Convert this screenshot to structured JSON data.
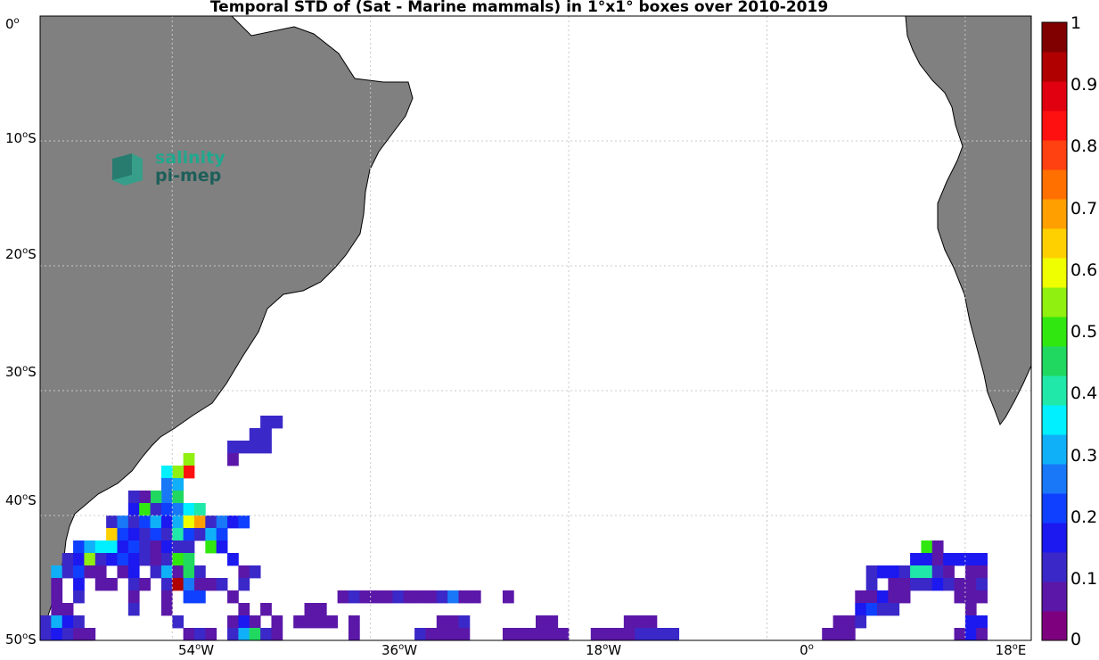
{
  "title": "Temporal STD of (Sat - Marine mammals) in 1°x1° boxes over 2010-2019",
  "map": {
    "lon_range": [
      -66,
      24
    ],
    "lat_range": [
      -50,
      0
    ],
    "land_color": "#808080",
    "ocean_color": "#ffffff",
    "grid": true,
    "y_ticks": [
      {
        "deg": "0",
        "hemi": ""
      },
      {
        "deg": "10",
        "hemi": "S"
      },
      {
        "deg": "20",
        "hemi": "S"
      },
      {
        "deg": "30",
        "hemi": "S"
      },
      {
        "deg": "40",
        "hemi": "S"
      },
      {
        "deg": "50",
        "hemi": "S"
      }
    ],
    "x_ticks": [
      {
        "deg": "54",
        "hemi": "W"
      },
      {
        "deg": "36",
        "hemi": "W"
      },
      {
        "deg": "18",
        "hemi": "W"
      },
      {
        "deg": "0",
        "hemi": ""
      },
      {
        "deg": "18",
        "hemi": "E"
      }
    ]
  },
  "colorbar": {
    "ticks": [
      "1",
      "0.9",
      "0.8",
      "0.7",
      "0.6",
      "0.5",
      "0.4",
      "0.3",
      "0.2",
      "0.1",
      "0"
    ],
    "colors": [
      "#7f007f",
      "#5b17a8",
      "#3b28c8",
      "#1c18f0",
      "#1040ff",
      "#1878f8",
      "#10b0f8",
      "#00f0ff",
      "#20e8a8",
      "#20d860",
      "#30e810",
      "#90f010",
      "#f0ff00",
      "#ffd000",
      "#ffa000",
      "#ff7000",
      "#ff4010",
      "#ff1010",
      "#e00010",
      "#b00000",
      "#800000"
    ]
  },
  "logo": {
    "line1": "salinity",
    "line2": "pi-mep"
  },
  "chart_data": {
    "type": "heatmap",
    "title": "Temporal STD of (Sat - Marine mammals) in 1°x1° boxes over 2010-2019",
    "value_range": [
      0,
      1
    ],
    "cell_size_deg": 1,
    "cells": [
      [
        -45.5,
        -32.5,
        0.1
      ],
      [
        -44.5,
        -32.5,
        0.1
      ],
      [
        -46.5,
        -33.5,
        0.1
      ],
      [
        -45.5,
        -33.5,
        0.1
      ],
      [
        -48.5,
        -34.5,
        0.1
      ],
      [
        -47.5,
        -34.5,
        0.1
      ],
      [
        -46.5,
        -34.5,
        0.1
      ],
      [
        -45.5,
        -34.5,
        0.1
      ],
      [
        -52.5,
        -35.5,
        0.55
      ],
      [
        -48.5,
        -35.5,
        0.05
      ],
      [
        -52.5,
        -36.5,
        0.85
      ],
      [
        -53.5,
        -36.5,
        0.55
      ],
      [
        -54.5,
        -36.5,
        0.35
      ],
      [
        -54.5,
        -37.5,
        0.25
      ],
      [
        -53.5,
        -37.5,
        0.3
      ],
      [
        -54.5,
        -38.5,
        0.25
      ],
      [
        -53.5,
        -38.5,
        0.45
      ],
      [
        -55.5,
        -38.5,
        0.45
      ],
      [
        -56.5,
        -38.5,
        0.05
      ],
      [
        -57.5,
        -38.5,
        0.1
      ],
      [
        -57.5,
        -39.5,
        0.15
      ],
      [
        -56.5,
        -39.5,
        0.5
      ],
      [
        -55.5,
        -39.5,
        0.1
      ],
      [
        -54.5,
        -39.5,
        0.2
      ],
      [
        -53.5,
        -39.5,
        0.25
      ],
      [
        -52.5,
        -39.5,
        0.35
      ],
      [
        -51.5,
        -39.5,
        0.4
      ],
      [
        -59.5,
        -40.5,
        0.1
      ],
      [
        -58.5,
        -40.5,
        0.25
      ],
      [
        -57.5,
        -40.5,
        0.1
      ],
      [
        -56.5,
        -40.5,
        0.2
      ],
      [
        -55.5,
        -40.5,
        0.3
      ],
      [
        -54.5,
        -40.5,
        0.15
      ],
      [
        -53.5,
        -40.5,
        0.3
      ],
      [
        -52.5,
        -40.5,
        0.6
      ],
      [
        -51.5,
        -40.5,
        0.7
      ],
      [
        -50.5,
        -40.5,
        0.1
      ],
      [
        -49.5,
        -40.5,
        0.25
      ],
      [
        -48.5,
        -40.5,
        0.15
      ],
      [
        -47.5,
        -40.5,
        0.2
      ],
      [
        -59.5,
        -41.5,
        0.65
      ],
      [
        -58.5,
        -41.5,
        0.2
      ],
      [
        -57.5,
        -41.5,
        0.15
      ],
      [
        -56.5,
        -41.5,
        0.1
      ],
      [
        -55.5,
        -41.5,
        0.2
      ],
      [
        -54.5,
        -41.5,
        0.1
      ],
      [
        -53.5,
        -41.5,
        0.4
      ],
      [
        -52.5,
        -41.5,
        0.2
      ],
      [
        -51.5,
        -41.5,
        0.1
      ],
      [
        -50.5,
        -41.5,
        0.3
      ],
      [
        -49.5,
        -41.5,
        0.2
      ],
      [
        -62.5,
        -42.5,
        0.2
      ],
      [
        -61.5,
        -42.5,
        0.3
      ],
      [
        -60.5,
        -42.5,
        0.35
      ],
      [
        -59.5,
        -42.5,
        0.35
      ],
      [
        -58.5,
        -42.5,
        0.15
      ],
      [
        -57.5,
        -42.5,
        0.2
      ],
      [
        -56.5,
        -42.5,
        0.1
      ],
      [
        -55.5,
        -42.5,
        0.05
      ],
      [
        -54.5,
        -42.5,
        0.15
      ],
      [
        -53.5,
        -42.5,
        0.1
      ],
      [
        -52.5,
        -42.5,
        0.1
      ],
      [
        -50.5,
        -42.5,
        0.5
      ],
      [
        -49.5,
        -42.5,
        0.15
      ],
      [
        -63.5,
        -43.5,
        0.1
      ],
      [
        -62.5,
        -43.5,
        0.15
      ],
      [
        -61.5,
        -43.5,
        0.55
      ],
      [
        -60.5,
        -43.5,
        0.1
      ],
      [
        -59.5,
        -43.5,
        0.15
      ],
      [
        -58.5,
        -43.5,
        0.2
      ],
      [
        -57.5,
        -43.5,
        0.15
      ],
      [
        -56.5,
        -43.5,
        0.1
      ],
      [
        -55.5,
        -43.5,
        0.05
      ],
      [
        -54.5,
        -43.5,
        0.1
      ],
      [
        -53.5,
        -43.5,
        0.5
      ],
      [
        -52.5,
        -43.5,
        0.45
      ],
      [
        -48.5,
        -43.5,
        0.15
      ],
      [
        -64.5,
        -44.5,
        0.3
      ],
      [
        -63.5,
        -44.5,
        0.1
      ],
      [
        -62.5,
        -44.5,
        0.2
      ],
      [
        -61.5,
        -44.5,
        0.05
      ],
      [
        -60.5,
        -44.5,
        0.05
      ],
      [
        -58.5,
        -44.5,
        0.05
      ],
      [
        -57.5,
        -44.5,
        0.15
      ],
      [
        -55.5,
        -44.5,
        0.1
      ],
      [
        -54.5,
        -44.5,
        0.3
      ],
      [
        -53.5,
        -44.5,
        0.05
      ],
      [
        -52.5,
        -44.5,
        0.45
      ],
      [
        -51.5,
        -44.5,
        0.1
      ],
      [
        -47.5,
        -44.5,
        0.05
      ],
      [
        -46.5,
        -44.5,
        0.1
      ],
      [
        -64.5,
        -45.5,
        0.05
      ],
      [
        -62.5,
        -45.5,
        0.15
      ],
      [
        -60.5,
        -45.5,
        0.05
      ],
      [
        -59.5,
        -45.5,
        0.05
      ],
      [
        -57.5,
        -45.5,
        0.1
      ],
      [
        -56.5,
        -45.5,
        0.05
      ],
      [
        -54.5,
        -45.5,
        0.1
      ],
      [
        -53.5,
        -45.5,
        0.95
      ],
      [
        -52.5,
        -45.5,
        0.25
      ],
      [
        -51.5,
        -45.5,
        0.05
      ],
      [
        -50.5,
        -45.5,
        0.05
      ],
      [
        -49.5,
        -45.5,
        0.1
      ],
      [
        -47.5,
        -45.5,
        0.1
      ],
      [
        -64.5,
        -46.5,
        0.05
      ],
      [
        -62.5,
        -46.5,
        0.1
      ],
      [
        -57.5,
        -46.5,
        0.05
      ],
      [
        -54.5,
        -46.5,
        0.05
      ],
      [
        -52.5,
        -46.5,
        0.2
      ],
      [
        -51.5,
        -46.5,
        0.2
      ],
      [
        -48.5,
        -46.5,
        0.05
      ],
      [
        -38.5,
        -46.5,
        0.05
      ],
      [
        -37.5,
        -46.5,
        0.1
      ],
      [
        -36.5,
        -46.5,
        0.05
      ],
      [
        -35.5,
        -46.5,
        0.05
      ],
      [
        -34.5,
        -46.5,
        0.05
      ],
      [
        -33.5,
        -46.5,
        0.1
      ],
      [
        -32.5,
        -46.5,
        0.05
      ],
      [
        -31.5,
        -46.5,
        0.05
      ],
      [
        -30.5,
        -46.5,
        0.05
      ],
      [
        -29.5,
        -46.5,
        0.1
      ],
      [
        -28.5,
        -46.5,
        0.25
      ],
      [
        -27.5,
        -46.5,
        0.05
      ],
      [
        -26.5,
        -46.5,
        0.05
      ],
      [
        -23.5,
        -46.5,
        0.05
      ],
      [
        -64.5,
        -47.5,
        0.05
      ],
      [
        -63.5,
        -47.5,
        0.05
      ],
      [
        -57.5,
        -47.5,
        0.1
      ],
      [
        -54.5,
        -47.5,
        0.05
      ],
      [
        -47.5,
        -47.5,
        0.05
      ],
      [
        -45.5,
        -47.5,
        0.05
      ],
      [
        -41.5,
        -47.5,
        0.05
      ],
      [
        -40.5,
        -47.5,
        0.05
      ],
      [
        -65.5,
        -48.5,
        0.1
      ],
      [
        -64.5,
        -48.5,
        0.3
      ],
      [
        -63.5,
        -48.5,
        0.15
      ],
      [
        -62.5,
        -48.5,
        0.1
      ],
      [
        -53.5,
        -48.5,
        0.1
      ],
      [
        -48.5,
        -48.5,
        0.05
      ],
      [
        -47.5,
        -48.5,
        0.15
      ],
      [
        -46.5,
        -48.5,
        0.05
      ],
      [
        -44.5,
        -48.5,
        0.05
      ],
      [
        -42.5,
        -48.5,
        0.05
      ],
      [
        -41.5,
        -48.5,
        0.05
      ],
      [
        -40.5,
        -48.5,
        0.05
      ],
      [
        -39.5,
        -48.5,
        0.05
      ],
      [
        -37.5,
        -48.5,
        0.05
      ],
      [
        -29.5,
        -48.5,
        0.05
      ],
      [
        -28.5,
        -48.5,
        0.05
      ],
      [
        -27.5,
        -48.5,
        0.1
      ],
      [
        -20.5,
        -48.5,
        0.05
      ],
      [
        -19.5,
        -48.5,
        0.05
      ],
      [
        -12.5,
        -48.5,
        0.05
      ],
      [
        -11.5,
        -48.5,
        0.05
      ],
      [
        -10.5,
        -48.5,
        0.05
      ],
      [
        -65.5,
        -49.5,
        0.1
      ],
      [
        -64.5,
        -49.5,
        0.15
      ],
      [
        -63.5,
        -49.5,
        0.1
      ],
      [
        -62.5,
        -49.5,
        0.05
      ],
      [
        -61.5,
        -49.5,
        0.05
      ],
      [
        -52.5,
        -49.5,
        0.05
      ],
      [
        -51.5,
        -49.5,
        0.1
      ],
      [
        -50.5,
        -49.5,
        0.05
      ],
      [
        -48.5,
        -49.5,
        0.1
      ],
      [
        -47.5,
        -49.5,
        0.3
      ],
      [
        -46.5,
        -49.5,
        0.45
      ],
      [
        -45.5,
        -49.5,
        0.1
      ],
      [
        -44.5,
        -49.5,
        0.05
      ],
      [
        -37.5,
        -49.5,
        0.05
      ],
      [
        -31.5,
        -49.5,
        0.1
      ],
      [
        -30.5,
        -49.5,
        0.05
      ],
      [
        -29.5,
        -49.5,
        0.05
      ],
      [
        -28.5,
        -49.5,
        0.05
      ],
      [
        -27.5,
        -49.5,
        0.05
      ],
      [
        -23.5,
        -49.5,
        0.05
      ],
      [
        -22.5,
        -49.5,
        0.05
      ],
      [
        -21.5,
        -49.5,
        0.05
      ],
      [
        -20.5,
        -49.5,
        0.05
      ],
      [
        -19.5,
        -49.5,
        0.05
      ],
      [
        -18.5,
        -49.5,
        0.05
      ],
      [
        -15.5,
        -49.5,
        0.05
      ],
      [
        -14.5,
        -49.5,
        0.05
      ],
      [
        -13.5,
        -49.5,
        0.05
      ],
      [
        -12.5,
        -49.5,
        0.05
      ],
      [
        -11.5,
        -49.5,
        0.1
      ],
      [
        -10.5,
        -49.5,
        0.1
      ],
      [
        -9.5,
        -49.5,
        0.1
      ],
      [
        -8.5,
        -49.5,
        0.1
      ],
      [
        14.5,
        -42.5,
        0.5
      ],
      [
        15.5,
        -42.5,
        0.05
      ],
      [
        13.5,
        -43.5,
        0.15
      ],
      [
        14.5,
        -43.5,
        0.15
      ],
      [
        15.5,
        -43.5,
        0.05
      ],
      [
        16.5,
        -43.5,
        0.15
      ],
      [
        17.5,
        -43.5,
        0.15
      ],
      [
        18.5,
        -43.5,
        0.15
      ],
      [
        19.5,
        -43.5,
        0.15
      ],
      [
        9.5,
        -44.5,
        0.1
      ],
      [
        10.5,
        -44.5,
        0.15
      ],
      [
        11.5,
        -44.5,
        0.15
      ],
      [
        12.5,
        -44.5,
        0.1
      ],
      [
        13.5,
        -44.5,
        0.4
      ],
      [
        14.5,
        -44.5,
        0.4
      ],
      [
        15.5,
        -44.5,
        0.1
      ],
      [
        16.5,
        -44.5,
        0.05
      ],
      [
        18.5,
        -44.5,
        0.05
      ],
      [
        19.5,
        -44.5,
        0.05
      ],
      [
        9.5,
        -45.5,
        0.1
      ],
      [
        11.5,
        -45.5,
        0.05
      ],
      [
        12.5,
        -45.5,
        0.05
      ],
      [
        13.5,
        -45.5,
        0.1
      ],
      [
        14.5,
        -45.5,
        0.1
      ],
      [
        15.5,
        -45.5,
        0.15
      ],
      [
        16.5,
        -45.5,
        0.1
      ],
      [
        17.5,
        -45.5,
        0.05
      ],
      [
        18.5,
        -45.5,
        0.05
      ],
      [
        19.5,
        -45.5,
        0.1
      ],
      [
        8.5,
        -46.5,
        0.05
      ],
      [
        9.5,
        -46.5,
        0.05
      ],
      [
        10.5,
        -46.5,
        0.15
      ],
      [
        11.5,
        -46.5,
        0.05
      ],
      [
        12.5,
        -46.5,
        0.05
      ],
      [
        17.5,
        -46.5,
        0.05
      ],
      [
        18.5,
        -46.5,
        0.05
      ],
      [
        19.5,
        -46.5,
        0.05
      ],
      [
        8.5,
        -47.5,
        0.15
      ],
      [
        9.5,
        -47.5,
        0.2
      ],
      [
        10.5,
        -47.5,
        0.1
      ],
      [
        11.5,
        -47.5,
        0.1
      ],
      [
        18.5,
        -47.5,
        0.05
      ],
      [
        6.5,
        -48.5,
        0.05
      ],
      [
        7.5,
        -48.5,
        0.05
      ],
      [
        8.5,
        -48.5,
        0.1
      ],
      [
        18.5,
        -48.5,
        0.15
      ],
      [
        19.5,
        -48.5,
        0.15
      ],
      [
        5.5,
        -49.5,
        0.05
      ],
      [
        6.5,
        -49.5,
        0.05
      ],
      [
        7.5,
        -49.5,
        0.05
      ],
      [
        17.5,
        -49.5,
        0.05
      ],
      [
        18.5,
        -49.5,
        0.15
      ],
      [
        19.5,
        -49.5,
        0.05
      ]
    ]
  }
}
